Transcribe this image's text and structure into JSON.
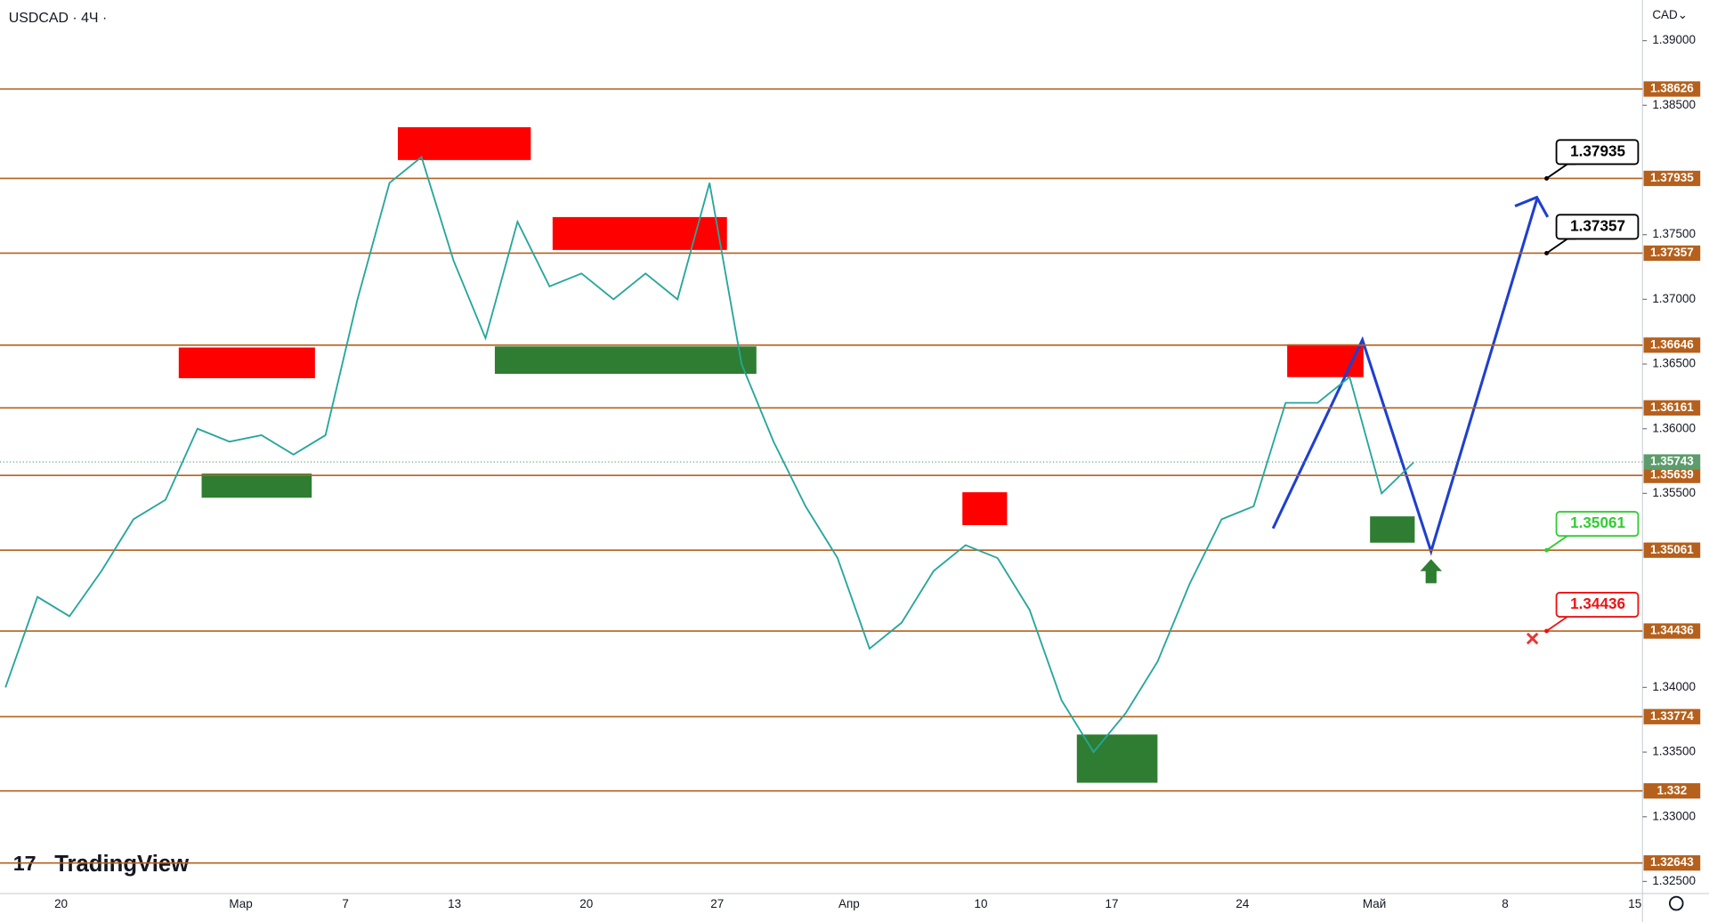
{
  "header": {
    "symbol": "USDCAD · 4Ч ·",
    "currency": "CAD⌄",
    "logo": "TradingView"
  },
  "chart_data": {
    "type": "line",
    "ylim": [
      1.32407,
      1.39314
    ],
    "yticks": [
      {
        "value": 1.39,
        "label": "1.39000"
      },
      {
        "value": 1.385,
        "label": "1.38500"
      },
      {
        "value": 1.375,
        "label": "1.37500"
      },
      {
        "value": 1.37,
        "label": "1.37000"
      },
      {
        "value": 1.365,
        "label": "1.36500"
      },
      {
        "value": 1.36,
        "label": "1.36000"
      },
      {
        "value": 1.355,
        "label": "1.35500"
      },
      {
        "value": 1.34,
        "label": "1.34000"
      },
      {
        "value": 1.335,
        "label": "1.33500"
      },
      {
        "value": 1.33,
        "label": "1.33000"
      },
      {
        "value": 1.325,
        "label": "1.32500"
      }
    ],
    "time_labels": [
      "20",
      "Мар",
      "7",
      "13",
      "20",
      "27",
      "Апр",
      "10",
      "17",
      "24",
      "Май",
      "8",
      "15"
    ],
    "series": [
      {
        "color": "#26a69a",
        "values": [
          1.34,
          1.347,
          1.3455,
          1.349,
          1.353,
          1.3545,
          1.36,
          1.359,
          1.3595,
          1.358,
          1.3595,
          1.37,
          1.379,
          1.381,
          1.373,
          1.367,
          1.376,
          1.371,
          1.372,
          1.37,
          1.372,
          1.37,
          1.379,
          1.365,
          1.359,
          1.354,
          1.35,
          1.343,
          1.345,
          1.349,
          1.351,
          1.35,
          1.346,
          1.339,
          1.335,
          1.338,
          1.342,
          1.348,
          1.353,
          1.354,
          1.362,
          1.362,
          1.364,
          1.355,
          1.3574
        ]
      }
    ],
    "levels": [
      1.38626,
      1.37935,
      1.37357,
      1.36646,
      1.36161,
      1.35639,
      1.35061,
      1.34436,
      1.33774,
      1.332,
      1.32643
    ],
    "level_color": "#b5601c",
    "last_price": 1.35743,
    "last_price_color": "#5d9c6c",
    "callouts": [
      {
        "value": 1.37935,
        "color": "#000000"
      },
      {
        "value": 1.37357,
        "color": "#000000"
      },
      {
        "value": 1.35061,
        "color": "#33cc33"
      },
      {
        "value": 1.34436,
        "color": "#ee1111"
      }
    ]
  }
}
